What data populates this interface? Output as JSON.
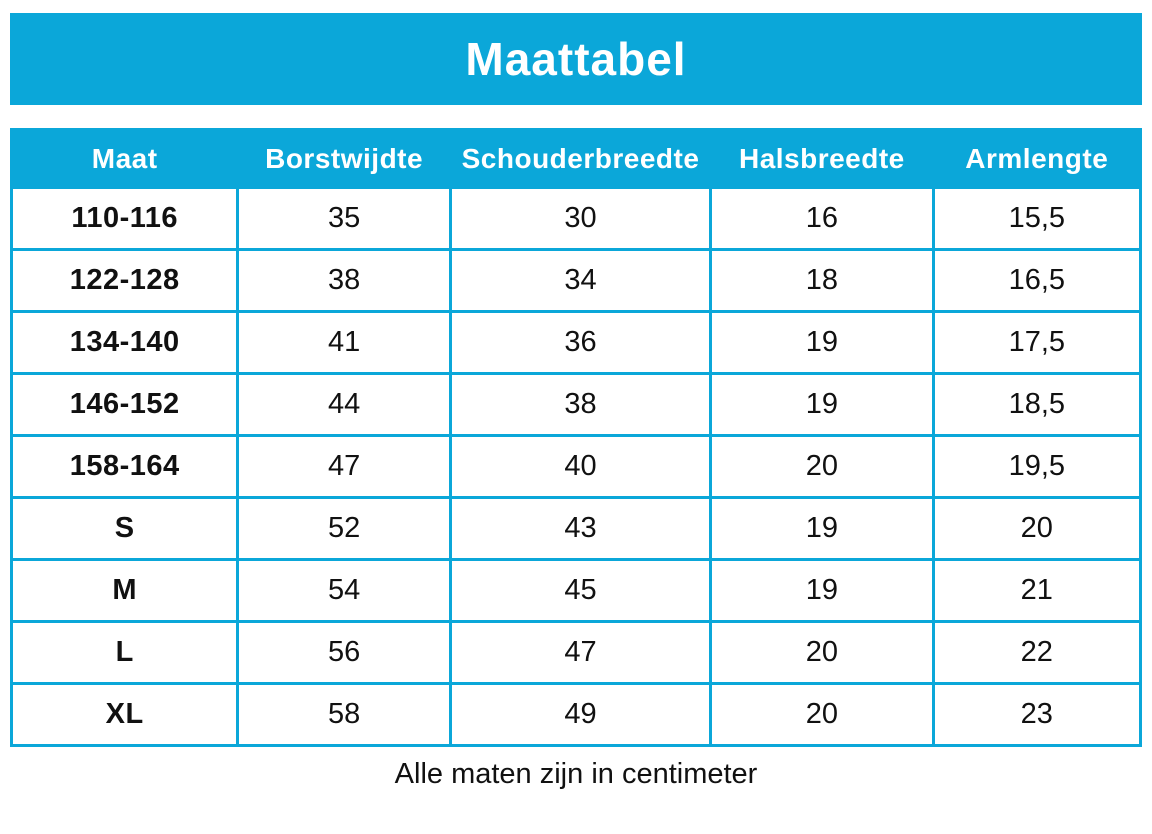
{
  "title": "Maattabel",
  "footer_note": "Alle maten zijn in centimeter",
  "colors": {
    "accent": "#0ba7d9",
    "header_text": "#ffffff",
    "body_text": "#111111"
  },
  "chart_data": {
    "type": "table",
    "title": "Maattabel",
    "columns": [
      "Maat",
      "Borstwijdte",
      "Schouderbreedte",
      "Halsbreedte",
      "Armlengte"
    ],
    "rows": [
      [
        "110-116",
        "35",
        "30",
        "16",
        "15,5"
      ],
      [
        "122-128",
        "38",
        "34",
        "18",
        "16,5"
      ],
      [
        "134-140",
        "41",
        "36",
        "19",
        "17,5"
      ],
      [
        "146-152",
        "44",
        "38",
        "19",
        "18,5"
      ],
      [
        "158-164",
        "47",
        "40",
        "20",
        "19,5"
      ],
      [
        "S",
        "52",
        "43",
        "19",
        "20"
      ],
      [
        "M",
        "54",
        "45",
        "19",
        "21"
      ],
      [
        "L",
        "56",
        "47",
        "20",
        "22"
      ],
      [
        "XL",
        "58",
        "49",
        "20",
        "23"
      ]
    ],
    "units_note": "Alle maten zijn in centimeter"
  }
}
